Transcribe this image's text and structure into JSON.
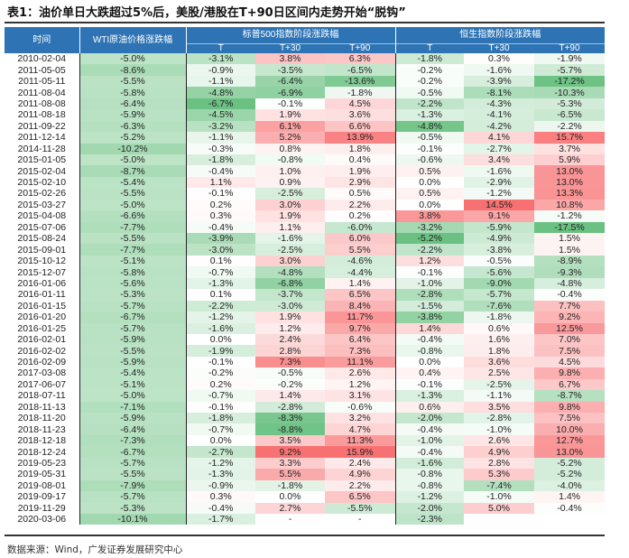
{
  "title": "表1：油价单日大跌超过5%后，美股/港股在T+90日区间内走势开始“脱钩”",
  "headers": {
    "date": "时间",
    "wti": "WTI原油价格涨跌幅",
    "sp500": "标普500指数阶段涨跌幅",
    "hsi": "恒生指数阶段涨跌幅",
    "sub": [
      "T",
      "T+30",
      "T+90",
      "T",
      "T+30",
      "T+90"
    ]
  },
  "rows": [
    [
      "2010-02-04",
      "-5.0%",
      "-3.1%",
      "3.8%",
      "6.3%",
      "-1.8%",
      "0.3%",
      "-1.9%"
    ],
    [
      "2011-05-05",
      "-8.6%",
      "-0.9%",
      "-3.5%",
      "-6.5%",
      "-0.2%",
      "-1.6%",
      "-5.7%"
    ],
    [
      "2011-05-11",
      "-5.5%",
      "-1.1%",
      "-6.4%",
      "-13.6%",
      "-0.2%",
      "-3.9%",
      "-17.2%"
    ],
    [
      "2011-08-04",
      "-5.8%",
      "-4.8%",
      "-6.9%",
      "-1.8%",
      "-0.5%",
      "-8.1%",
      "-10.3%"
    ],
    [
      "2011-08-08",
      "-6.4%",
      "-6.7%",
      "-0.1%",
      "4.5%",
      "-2.2%",
      "-4.3%",
      "-5.3%"
    ],
    [
      "2011-08-18",
      "-5.9%",
      "-4.5%",
      "1.9%",
      "3.6%",
      "-1.3%",
      "-4.1%",
      "-6.5%"
    ],
    [
      "2011-09-22",
      "-6.3%",
      "-3.2%",
      "6.1%",
      "6.6%",
      "-4.8%",
      "-4.2%",
      "-2.2%"
    ],
    [
      "2011-12-14",
      "-5.2%",
      "-1.1%",
      "5.2%",
      "13.9%",
      "-0.5%",
      "4.1%",
      "15.7%"
    ],
    [
      "2014-11-28",
      "-10.2%",
      "-0.3%",
      "0.8%",
      "1.8%",
      "-0.1%",
      "-2.7%",
      "3.7%"
    ],
    [
      "2015-01-05",
      "-5.0%",
      "-1.8%",
      "-0.8%",
      "0.4%",
      "-0.6%",
      "3.4%",
      "5.9%"
    ],
    [
      "2015-02-04",
      "-8.7%",
      "-0.4%",
      "1.0%",
      "1.9%",
      "0.5%",
      "-1.6%",
      "13.0%"
    ],
    [
      "2015-02-10",
      "-5.4%",
      "1.1%",
      "0.9%",
      "2.9%",
      "0.0%",
      "-2.9%",
      "13.0%"
    ],
    [
      "2015-02-26",
      "-5.5%",
      "-0.1%",
      "-2.5%",
      "0.5%",
      "0.5%",
      "-1.2%",
      "13.3%"
    ],
    [
      "2015-03-27",
      "-5.0%",
      "0.2%",
      "3.0%",
      "2.2%",
      "0.0%",
      "14.5%",
      "10.8%"
    ],
    [
      "2015-04-08",
      "-6.6%",
      "0.3%",
      "1.9%",
      "0.2%",
      "3.8%",
      "9.1%",
      "-1.2%"
    ],
    [
      "2015-07-06",
      "-7.7%",
      "-0.4%",
      "1.1%",
      "-6.0%",
      "-3.2%",
      "-5.9%",
      "-17.5%"
    ],
    [
      "2015-08-24",
      "-5.5%",
      "-3.9%",
      "-1.6%",
      "6.0%",
      "-5.2%",
      "-4.9%",
      "1.5%"
    ],
    [
      "2015-09-01",
      "-7.7%",
      "-3.0%",
      "-2.5%",
      "5.5%",
      "-2.2%",
      "-3.8%",
      "1.5%"
    ],
    [
      "2015-10-12",
      "-5.1%",
      "0.1%",
      "3.0%",
      "-4.6%",
      "1.2%",
      "-0.5%",
      "-8.9%"
    ],
    [
      "2015-12-07",
      "-5.8%",
      "-0.7%",
      "-4.8%",
      "-4.4%",
      "-0.1%",
      "-5.6%",
      "-9.3%"
    ],
    [
      "2016-01-06",
      "-5.6%",
      "-1.3%",
      "-6.8%",
      "1.4%",
      "-1.0%",
      "-9.0%",
      "-4.8%"
    ],
    [
      "2016-01-11",
      "-5.3%",
      "0.1%",
      "-3.7%",
      "6.5%",
      "-2.8%",
      "-5.7%",
      "-0.4%"
    ],
    [
      "2016-01-15",
      "-5.7%",
      "-2.2%",
      "-3.0%",
      "8.4%",
      "-1.5%",
      "-7.6%",
      "7.7%"
    ],
    [
      "2016-01-20",
      "-6.7%",
      "-1.2%",
      "1.9%",
      "11.7%",
      "-3.8%",
      "-1.8%",
      "9.2%"
    ],
    [
      "2016-01-25",
      "-5.7%",
      "-1.6%",
      "1.2%",
      "9.7%",
      "1.4%",
      "0.6%",
      "12.5%"
    ],
    [
      "2016-02-01",
      "-5.9%",
      "0.0%",
      "2.4%",
      "6.4%",
      "-0.4%",
      "1.6%",
      "7.0%"
    ],
    [
      "2016-02-02",
      "-5.5%",
      "-1.9%",
      "2.8%",
      "7.3%",
      "-0.8%",
      "1.8%",
      "7.5%"
    ],
    [
      "2016-02-09",
      "-5.9%",
      "-0.1%",
      "7.3%",
      "11.1%",
      "0.0%",
      "3.6%",
      "4.5%"
    ],
    [
      "2017-03-08",
      "-5.4%",
      "-0.2%",
      "-0.5%",
      "2.6%",
      "0.4%",
      "2.5%",
      "9.8%"
    ],
    [
      "2017-06-07",
      "-5.1%",
      "0.2%",
      "-0.2%",
      "1.2%",
      "-0.1%",
      "-2.5%",
      "6.7%"
    ],
    [
      "2018-07-11",
      "-5.0%",
      "-0.7%",
      "1.4%",
      "3.1%",
      "-1.3%",
      "-1.1%",
      "-8.7%"
    ],
    [
      "2018-11-13",
      "-7.1%",
      "-0.1%",
      "-2.8%",
      "-0.6%",
      "0.6%",
      "3.5%",
      "9.8%"
    ],
    [
      "2018-11-20",
      "-5.9%",
      "-1.8%",
      "-8.3%",
      "3.2%",
      "-2.0%",
      "-2.8%",
      "7.5%"
    ],
    [
      "2018-11-23",
      "-6.4%",
      "-0.7%",
      "-8.8%",
      "4.7%",
      "-0.4%",
      "-1.0%",
      "10.0%"
    ],
    [
      "2018-12-18",
      "-7.3%",
      "0.0%",
      "3.5%",
      "11.3%",
      "-1.0%",
      "2.6%",
      "12.7%"
    ],
    [
      "2018-12-24",
      "-6.7%",
      "-2.7%",
      "9.2%",
      "15.9%",
      "-0.4%",
      "4.9%",
      "13.0%"
    ],
    [
      "2019-05-23",
      "-5.7%",
      "-1.2%",
      "3.3%",
      "2.4%",
      "-1.6%",
      "2.8%",
      "-5.2%"
    ],
    [
      "2019-05-31",
      "-5.5%",
      "-1.3%",
      "5.5%",
      "4.9%",
      "-0.8%",
      "5.3%",
      "-5.2%"
    ],
    [
      "2019-08-01",
      "-7.9%",
      "-0.9%",
      "-1.8%",
      "2.2%",
      "-0.8%",
      "-7.4%",
      "-4.0%"
    ],
    [
      "2019-09-17",
      "-5.7%",
      "0.3%",
      "0.0%",
      "6.5%",
      "-1.2%",
      "-1.0%",
      "1.4%"
    ],
    [
      "2019-11-29",
      "-5.3%",
      "-0.4%",
      "2.7%",
      "-5.5%",
      "-2.0%",
      "5.0%",
      "-0.4%"
    ],
    [
      "2020-03-06",
      "-10.1%",
      "-1.7%",
      "-",
      "-",
      "-2.3%",
      "",
      ""
    ]
  ],
  "colors": {
    "header": "#2e74b5",
    "positive": "#f8696b",
    "negative": "#63be7b"
  },
  "source": "数据来源：Wind，广发证券发展研究中心"
}
